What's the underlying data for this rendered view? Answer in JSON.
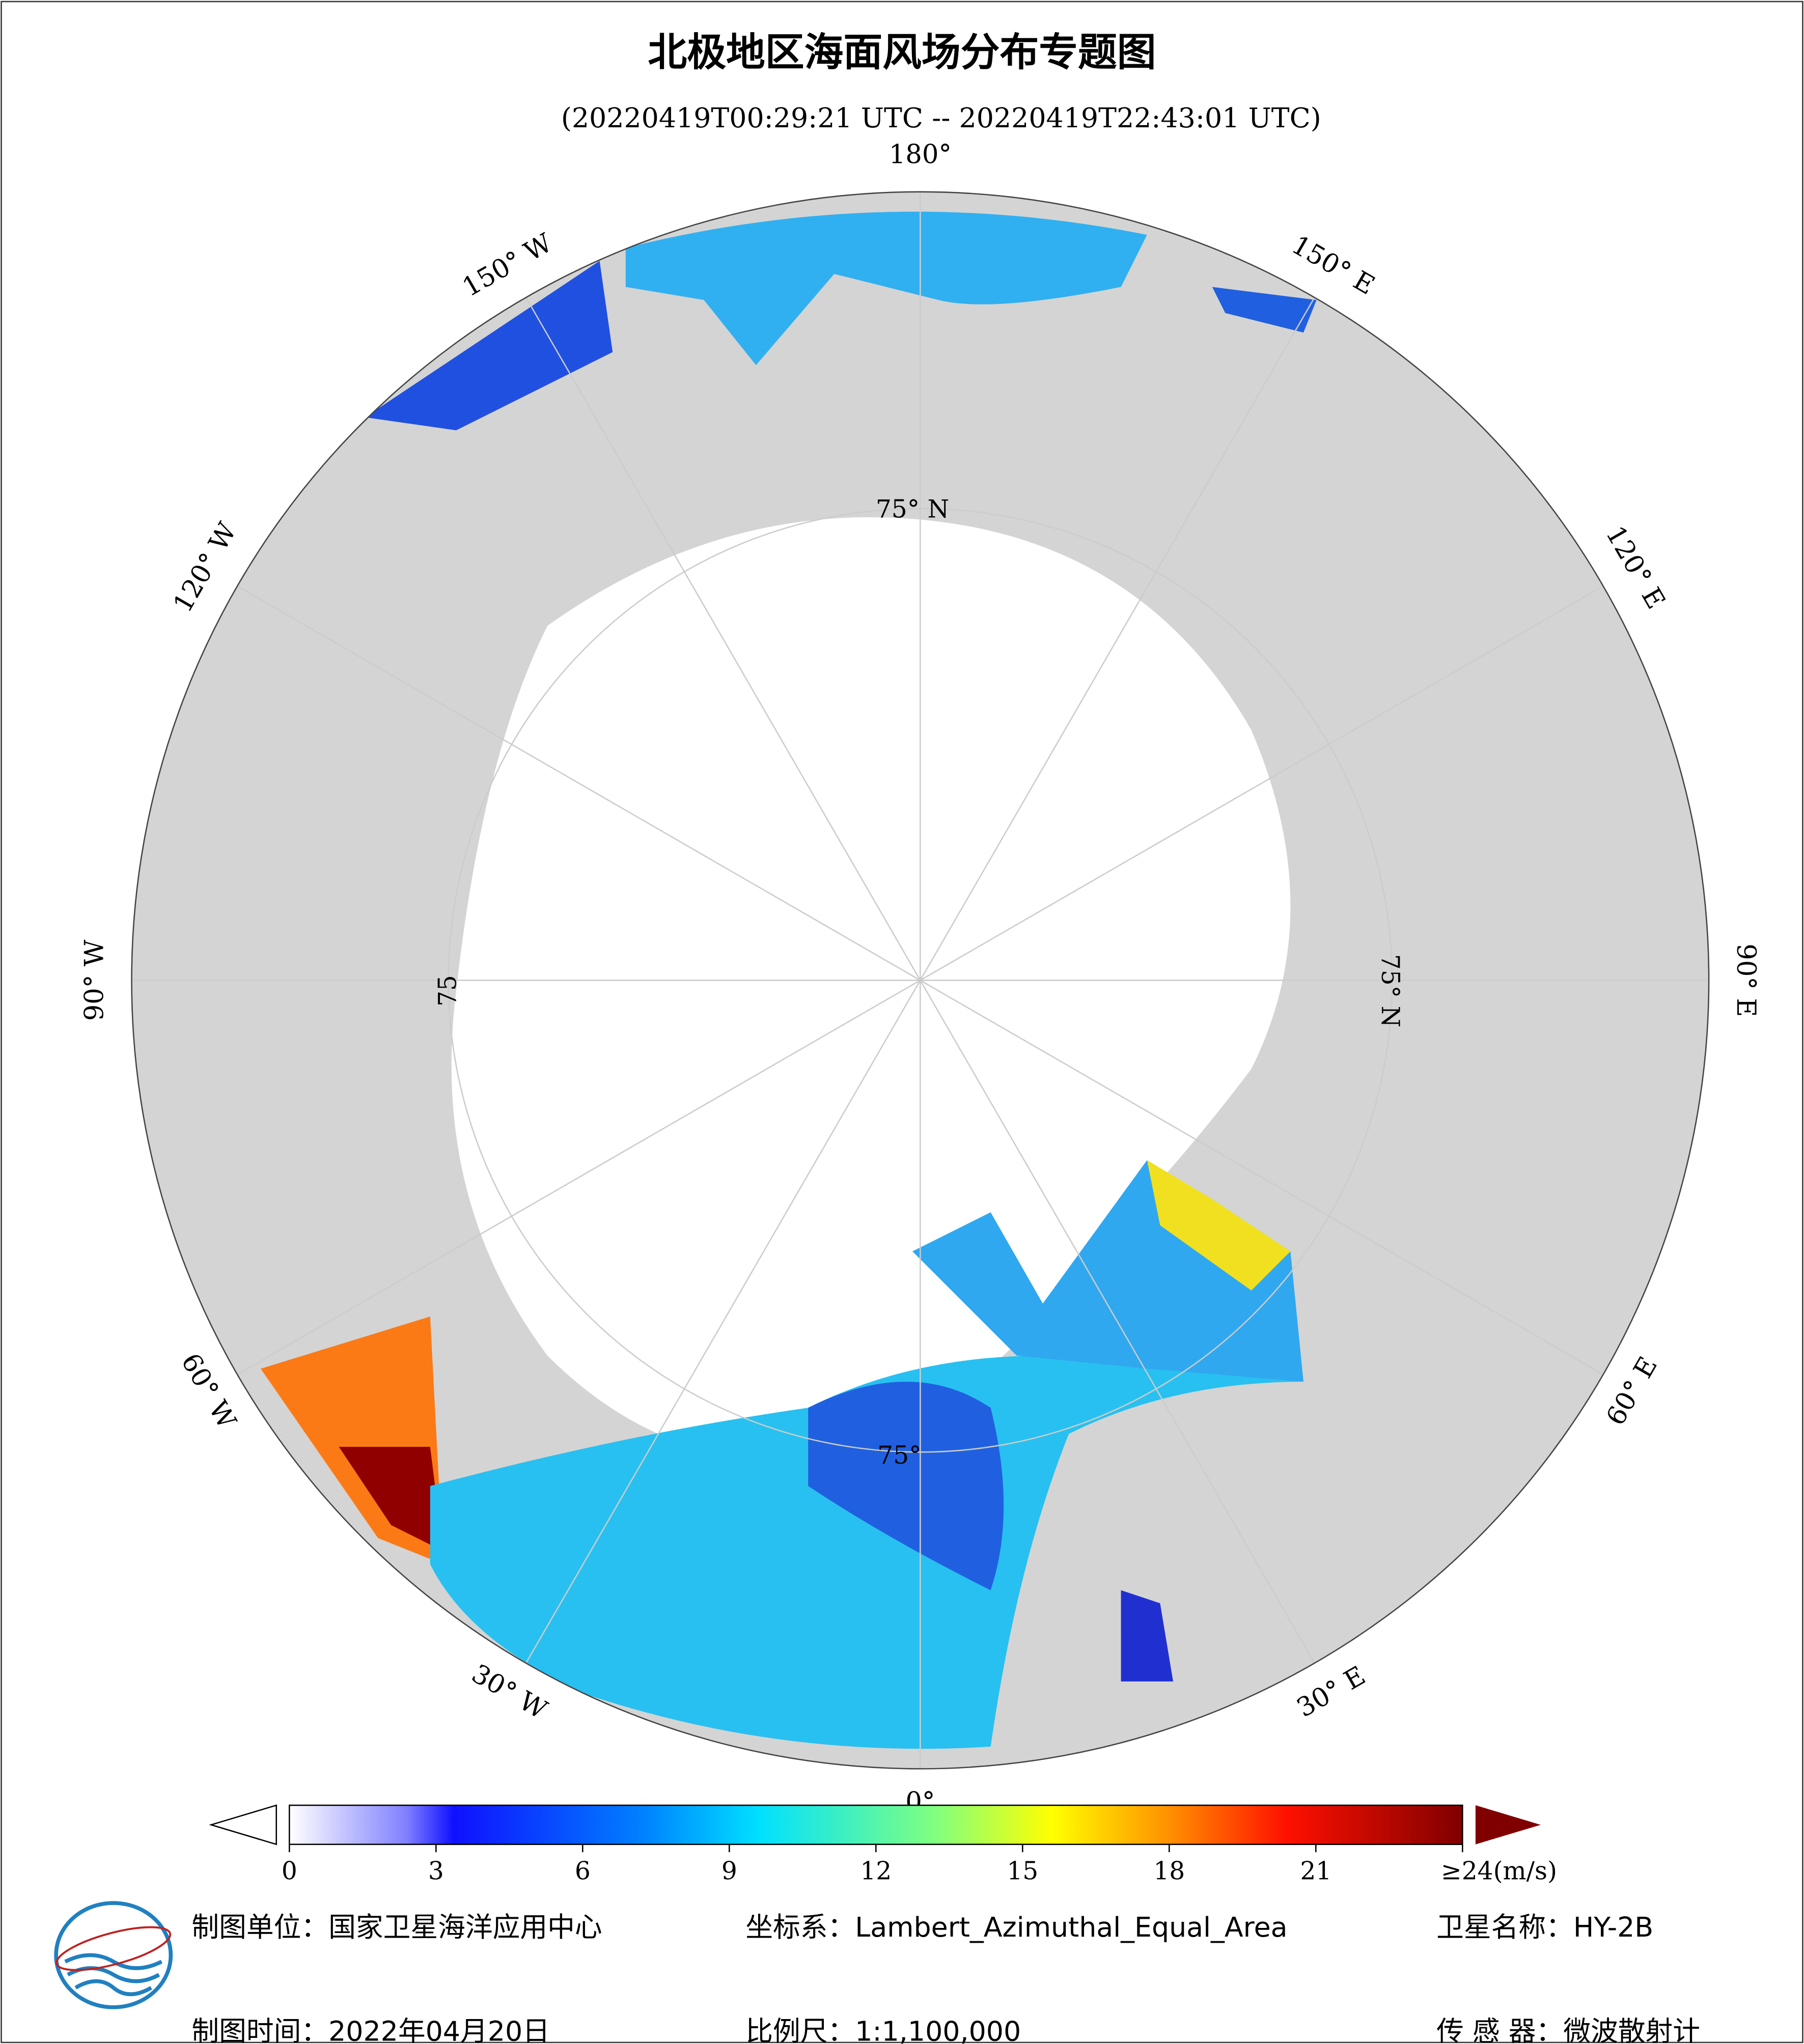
{
  "header": {
    "title": "北极地区海面风场分布专题图",
    "subtitle": "(20220419T00:29:21 UTC -- 20220419T22:43:01 UTC)"
  },
  "map": {
    "longitude_labels": [
      "180°",
      "150° E",
      "120° E",
      "90° E",
      "60° E",
      "30° E",
      "0°",
      "30° W",
      "60° W",
      "90° W",
      "120° W",
      "150° W"
    ],
    "latitude_labels": [
      "75° N",
      "75° N",
      "75",
      "75°"
    ]
  },
  "colorbar": {
    "lim": [
      0,
      24
    ],
    "ticks": [
      0,
      3,
      6,
      9,
      12,
      15,
      18,
      21,
      {
        "value": 24,
        "label": "≥24(m/s)"
      }
    ]
  },
  "footer": {
    "unit": "制图单位：国家卫星海洋应用中心",
    "crs": "坐标系：Lambert_Azimuthal_Equal_Area",
    "satellite": "卫星名称：HY-2B",
    "date": "制图时间：2022年04月20日",
    "scale": "比例尺：1:1,100,000",
    "sensor": "传 感 器：微波散射计"
  }
}
